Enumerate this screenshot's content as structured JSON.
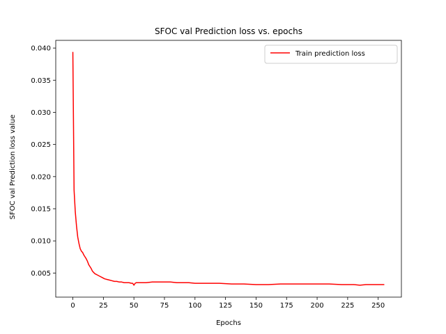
{
  "chart_data": {
    "type": "line",
    "title": "SFOC val Prediction loss vs. epochs",
    "xlabel": "Epochs",
    "ylabel": "SFOC val Prediction loss value",
    "xlim": [
      -14,
      269
    ],
    "ylim": [
      0.00125,
      0.0412
    ],
    "xticks": [
      0,
      25,
      50,
      75,
      100,
      125,
      150,
      175,
      200,
      225,
      250
    ],
    "yticks": [
      0.005,
      0.01,
      0.015,
      0.02,
      0.025,
      0.03,
      0.035,
      0.04
    ],
    "ytick_labels": [
      "0.005",
      "0.010",
      "0.015",
      "0.020",
      "0.025",
      "0.030",
      "0.035",
      "0.040"
    ],
    "grid": false,
    "legend": {
      "position": "top-right"
    },
    "series": [
      {
        "name": "Train prediction loss",
        "color": "#ff0000",
        "x": [
          0,
          1,
          2,
          3,
          4,
          5,
          6,
          7,
          8,
          9,
          10,
          11,
          12,
          13,
          14,
          15,
          16,
          17,
          18,
          19,
          20,
          22,
          24,
          26,
          28,
          30,
          32,
          34,
          36,
          38,
          40,
          42,
          44,
          46,
          48,
          49,
          50,
          51,
          52,
          55,
          60,
          65,
          70,
          75,
          80,
          85,
          90,
          95,
          100,
          110,
          120,
          130,
          140,
          150,
          160,
          170,
          180,
          190,
          200,
          210,
          220,
          225,
          230,
          235,
          240,
          245,
          250,
          255
        ],
        "y": [
          0.0394,
          0.0179,
          0.0145,
          0.0123,
          0.0106,
          0.0096,
          0.0088,
          0.0084,
          0.0082,
          0.0078,
          0.0075,
          0.0072,
          0.0068,
          0.0063,
          0.006,
          0.0057,
          0.0053,
          0.0051,
          0.0049,
          0.0048,
          0.0047,
          0.0045,
          0.0043,
          0.0041,
          0.004,
          0.0039,
          0.0038,
          0.0037,
          0.0037,
          0.0036,
          0.0036,
          0.0035,
          0.0035,
          0.0035,
          0.0034,
          0.0034,
          0.0031,
          0.0034,
          0.0035,
          0.0035,
          0.0035,
          0.0036,
          0.0036,
          0.0036,
          0.0036,
          0.0035,
          0.0035,
          0.0035,
          0.0034,
          0.0034,
          0.0034,
          0.0033,
          0.0033,
          0.0032,
          0.0032,
          0.0033,
          0.0033,
          0.0033,
          0.0033,
          0.0033,
          0.0032,
          0.0032,
          0.0032,
          0.0031,
          0.0032,
          0.0032,
          0.0032,
          0.0032
        ]
      }
    ]
  }
}
